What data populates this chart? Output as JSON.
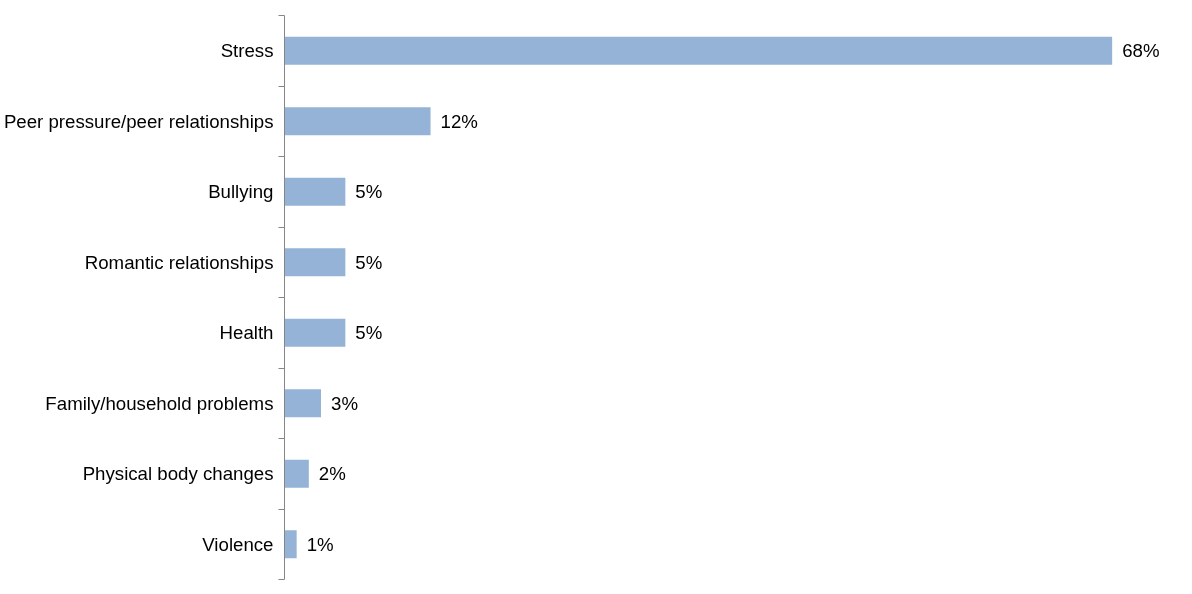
{
  "chart_data": {
    "type": "bar",
    "orientation": "horizontal",
    "categories": [
      "Stress",
      "Peer pressure/peer relationships",
      "Bullying",
      "Romantic relationships",
      "Health",
      "Family/household problems",
      "Physical body changes",
      "Violence"
    ],
    "values": [
      68,
      12,
      5,
      5,
      5,
      3,
      2,
      1
    ],
    "value_labels": [
      "68%",
      "12%",
      "5%",
      "5%",
      "5%",
      "3%",
      "2%",
      "1%"
    ],
    "color": "#95b3d7",
    "grid": false
  }
}
